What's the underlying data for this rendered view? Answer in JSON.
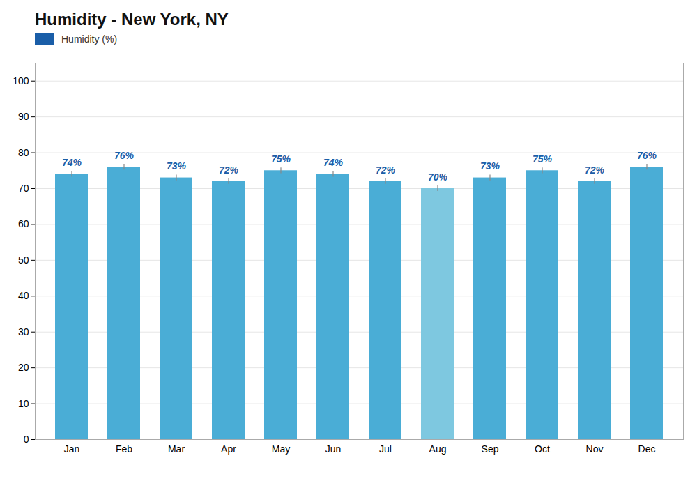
{
  "chart_data": {
    "type": "bar",
    "title": "Humidity - New York, NY",
    "categories": [
      "Jan",
      "Feb",
      "Mar",
      "Apr",
      "May",
      "Jun",
      "Jul",
      "Aug",
      "Sep",
      "Oct",
      "Nov",
      "Dec"
    ],
    "series": [
      {
        "name": "Humidity (%)",
        "color": "#1A5EA8",
        "colors": [
          "#4AADD6",
          "#4AADD6",
          "#4AADD6",
          "#4AADD6",
          "#4AADD6",
          "#4AADD6",
          "#4AADD6",
          "#7EC8E0",
          "#4AADD6",
          "#4AADD6",
          "#4AADD6",
          "#4AADD6"
        ],
        "values": [
          74,
          76,
          73,
          72,
          75,
          74,
          72,
          70,
          73,
          75,
          72,
          76
        ],
        "value_labels": [
          "74%",
          "76%",
          "73%",
          "72%",
          "75%",
          "74%",
          "72%",
          "70%",
          "73%",
          "75%",
          "72%",
          "76%"
        ],
        "errors": [
          0.8,
          0.8,
          0.8,
          0.8,
          0.8,
          0.8,
          0.8,
          0.8,
          0.8,
          0.8,
          0.8,
          0.8
        ]
      }
    ],
    "ylim": [
      0,
      105
    ],
    "yticks": [
      0,
      10,
      20,
      30,
      40,
      50,
      60,
      70,
      80,
      90,
      100
    ],
    "grid": true,
    "legend": "upper left",
    "data_labels": true
  }
}
